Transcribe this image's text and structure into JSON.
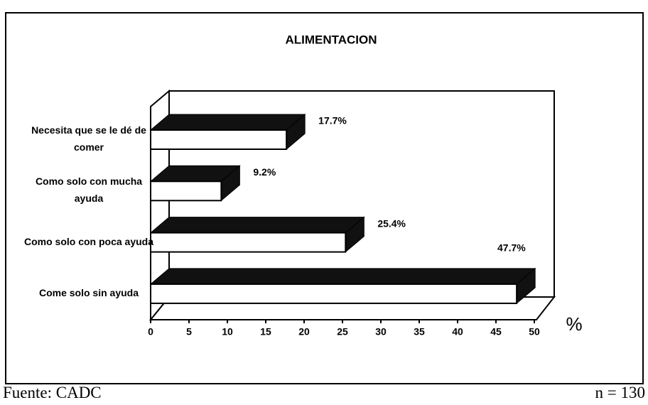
{
  "chart_data": {
    "type": "bar3d_horizontal",
    "title": "ALIMENTACION",
    "categories": [
      "Necesita que se le dé de comer",
      "Como solo con mucha ayuda",
      "Como solo con poca ayuda",
      "Come solo sin ayuda"
    ],
    "values": [
      17.7,
      9.2,
      25.4,
      47.7
    ],
    "value_labels": [
      "17.7%",
      "9.2%",
      "25.4%",
      "47.7%"
    ],
    "x_axis_label": "%",
    "xlim": [
      0,
      50
    ],
    "xticks": [
      0,
      5,
      10,
      15,
      20,
      25,
      30,
      35,
      40,
      45,
      50
    ],
    "color": "#ffffff",
    "top_color": "#111111",
    "source": "Fuente: CADC",
    "sample": "n = 130"
  }
}
